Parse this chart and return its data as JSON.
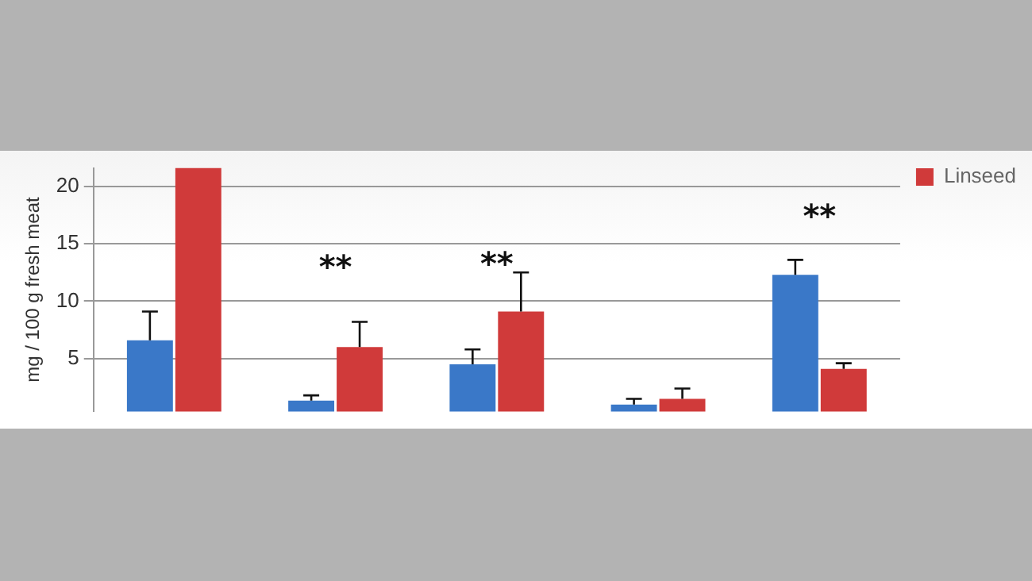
{
  "chart_data": {
    "type": "bar",
    "ylabel": "mg / 100 g fresh meat",
    "categories": [
      null,
      null,
      null,
      null,
      null
    ],
    "series": [
      {
        "color": "#3a78c8",
        "values": [
          6.6,
          1.35,
          4.5,
          1.0,
          12.3
        ],
        "errors": [
          2.5,
          0.45,
          1.3,
          0.5,
          1.3
        ]
      },
      {
        "name": "Linseed",
        "color": "#d03a3a",
        "values": [
          21.6,
          6.0,
          9.1,
          1.5,
          4.1
        ],
        "errors": [
          null,
          2.2,
          3.4,
          0.9,
          0.5
        ]
      }
    ],
    "ylim": [
      0.4,
      21.6
    ],
    "yticks": [
      5,
      10,
      15,
      20
    ],
    "grid": "y",
    "legend": "top right",
    "tick_labels": "y",
    "annotations": [
      "**",
      "**",
      "**"
    ]
  }
}
